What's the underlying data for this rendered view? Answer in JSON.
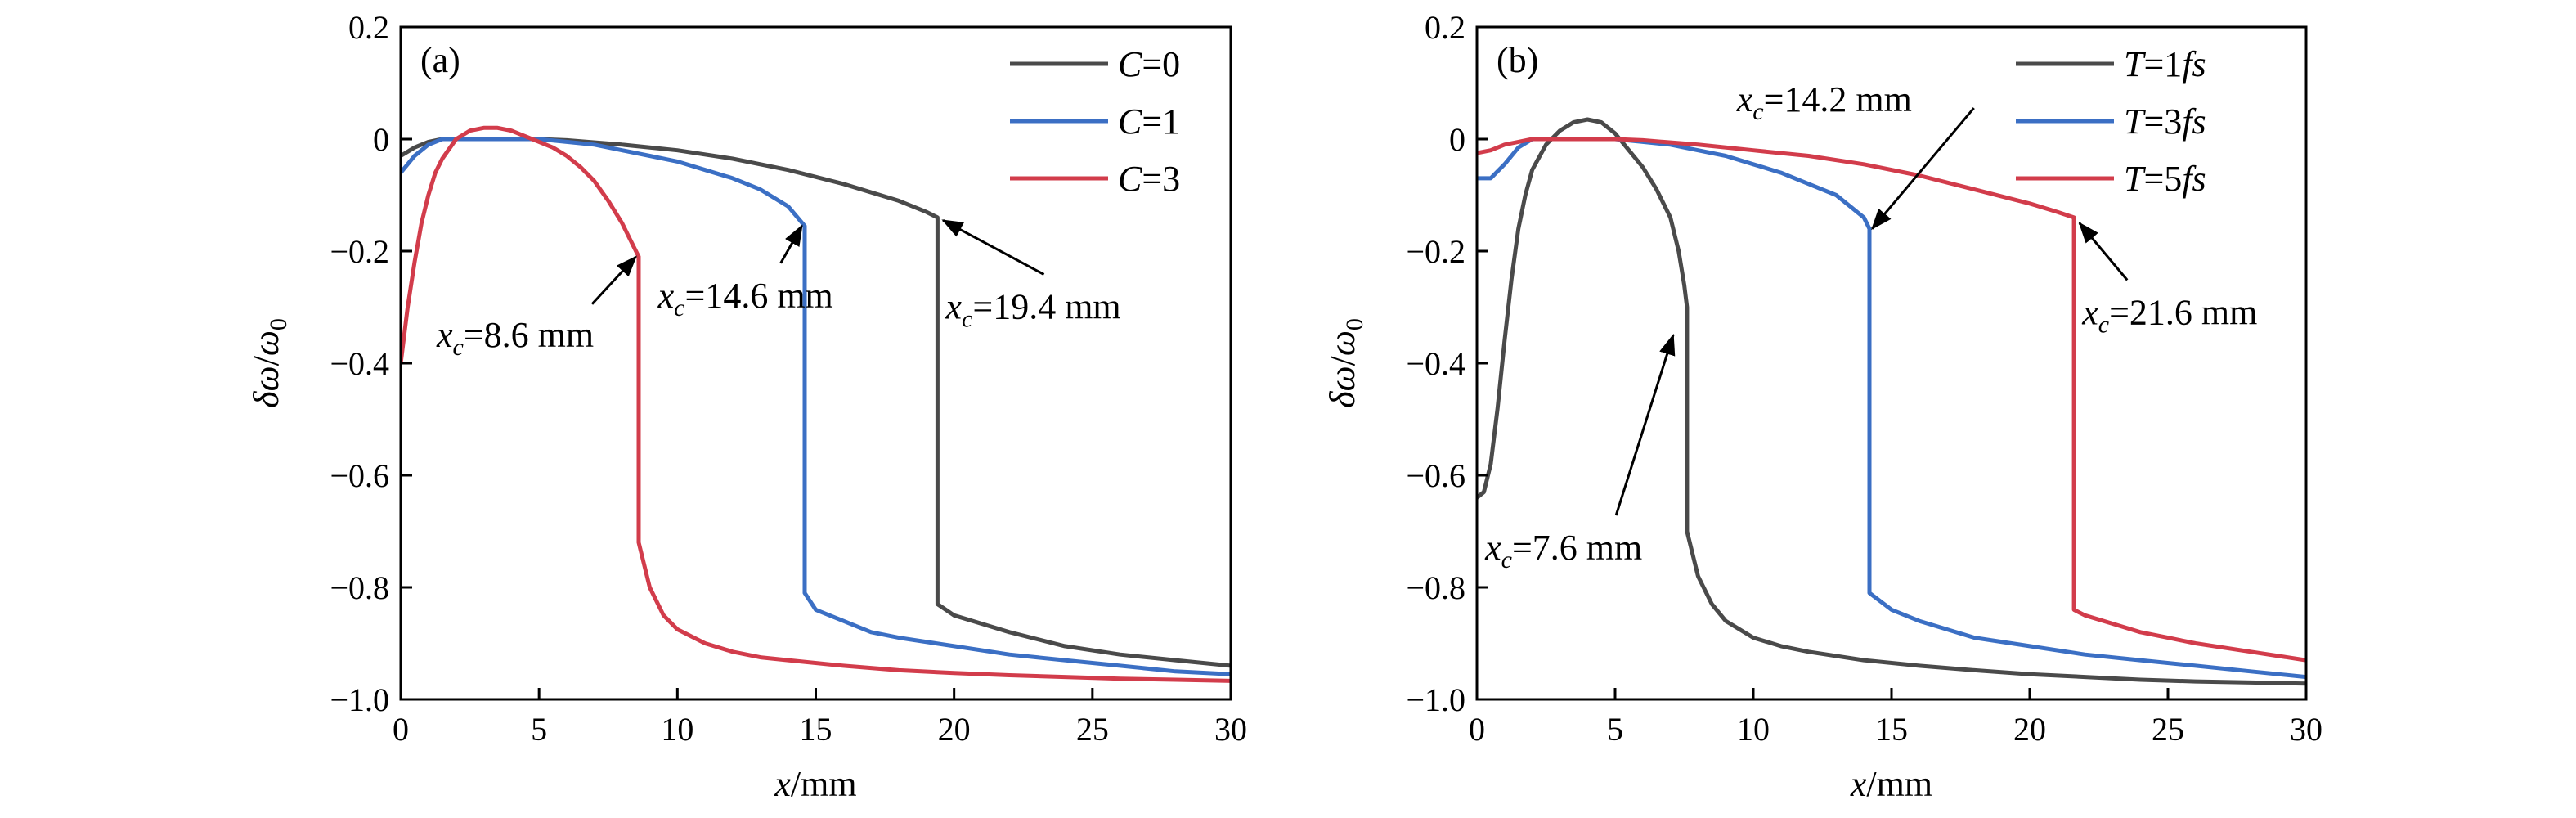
{
  "chart_data": [
    {
      "type": "line",
      "panel_label": "(a)",
      "xlabel": {
        "var": "x",
        "unit": "/mm"
      },
      "ylabel": {
        "num": "δω",
        "sep": "/",
        "den": "ω",
        "den_sub": "0"
      },
      "xlim": [
        0,
        30
      ],
      "ylim": [
        -1.0,
        0.2
      ],
      "xticks": [
        "0",
        "5",
        "10",
        "15",
        "20",
        "25",
        "30"
      ],
      "yticks": [
        "0.2",
        "0",
        "−0.2",
        "−0.4",
        "−0.6",
        "−0.8",
        "−1.0"
      ],
      "grid": false,
      "legend_position": "top-right",
      "series": [
        {
          "name": "C=0",
          "legend_var": "C",
          "legend_val": "=0",
          "color": "#4a4a4a",
          "x": [
            0,
            0.5,
            1,
            1.5,
            2,
            2.5,
            3,
            4,
            5,
            6,
            8,
            10,
            12,
            14,
            16,
            18,
            19,
            19.4,
            19.4,
            20,
            22,
            24,
            26,
            28,
            30
          ],
          "y": [
            -0.03,
            -0.015,
            -0.005,
            0,
            0,
            0,
            0,
            0,
            0,
            -0.002,
            -0.01,
            -0.02,
            -0.035,
            -0.055,
            -0.08,
            -0.11,
            -0.13,
            -0.14,
            -0.83,
            -0.85,
            -0.88,
            -0.905,
            -0.92,
            -0.93,
            -0.94
          ]
        },
        {
          "name": "C=1",
          "legend_var": "C",
          "legend_val": "=1",
          "color": "#3b6fc4",
          "x": [
            0,
            0.5,
            1,
            1.5,
            2,
            3,
            4,
            5,
            6,
            7,
            8,
            9,
            10,
            11,
            12,
            13,
            14,
            14.6,
            14.6,
            15,
            16,
            17,
            18,
            20,
            22,
            24,
            26,
            28,
            30
          ],
          "y": [
            -0.06,
            -0.03,
            -0.01,
            0,
            0,
            0,
            0,
            0,
            -0.005,
            -0.01,
            -0.02,
            -0.03,
            -0.04,
            -0.055,
            -0.07,
            -0.09,
            -0.12,
            -0.155,
            -0.81,
            -0.84,
            -0.86,
            -0.88,
            -0.89,
            -0.905,
            -0.92,
            -0.93,
            -0.94,
            -0.95,
            -0.955
          ]
        },
        {
          "name": "C=3",
          "legend_var": "C",
          "legend_val": "=3",
          "color": "#d23c4b",
          "x": [
            0,
            0.25,
            0.5,
            0.75,
            1,
            1.25,
            1.5,
            2,
            2.5,
            3,
            3.5,
            4,
            4.5,
            5,
            5.5,
            6,
            6.5,
            7,
            7.5,
            8,
            8.3,
            8.6,
            8.6,
            9,
            9.5,
            10,
            11,
            12,
            13,
            14,
            16,
            18,
            20,
            22,
            24,
            26,
            28,
            30
          ],
          "y": [
            -0.4,
            -0.3,
            -0.22,
            -0.15,
            -0.1,
            -0.06,
            -0.035,
            0,
            0.015,
            0.02,
            0.02,
            0.015,
            0.005,
            -0.005,
            -0.015,
            -0.03,
            -0.05,
            -0.075,
            -0.11,
            -0.15,
            -0.18,
            -0.21,
            -0.72,
            -0.8,
            -0.85,
            -0.875,
            -0.9,
            -0.915,
            -0.925,
            -0.93,
            -0.94,
            -0.948,
            -0.953,
            -0.957,
            -0.96,
            -0.963,
            -0.965,
            -0.967
          ]
        }
      ],
      "annotations": [
        {
          "var": "x",
          "sub": "c",
          "rest": "=8.6 mm",
          "at": [
            8.5,
            -0.21
          ],
          "text": [
            1.3,
            -0.35
          ]
        },
        {
          "var": "x",
          "sub": "c",
          "rest": "=14.6 mm",
          "at": [
            14.5,
            -0.155
          ],
          "text": [
            9.3,
            -0.28
          ]
        },
        {
          "var": "x",
          "sub": "c",
          "rest": "=19.4 mm",
          "at": [
            19.6,
            -0.145
          ],
          "text": [
            19.7,
            -0.3
          ]
        }
      ]
    },
    {
      "type": "line",
      "panel_label": "(b)",
      "xlabel": {
        "var": "x",
        "unit": "/mm"
      },
      "ylabel": {
        "num": "δω",
        "sep": "/",
        "den": "ω",
        "den_sub": "0"
      },
      "xlim": [
        0,
        30
      ],
      "ylim": [
        -1.0,
        0.2
      ],
      "xticks": [
        "0",
        "5",
        "10",
        "15",
        "20",
        "25",
        "30"
      ],
      "yticks": [
        "0.2",
        "0",
        "−0.2",
        "−0.4",
        "−0.6",
        "−0.8",
        "−1.0"
      ],
      "grid": false,
      "legend_position": "top-right",
      "series": [
        {
          "name": "T=1fs",
          "legend_var": "T",
          "legend_val": "=1",
          "legend_unit": "fs",
          "color": "#4a4a4a",
          "x": [
            0,
            0.25,
            0.5,
            0.75,
            1,
            1.25,
            1.5,
            1.75,
            2,
            2.5,
            3,
            3.5,
            4,
            4.5,
            5,
            5.5,
            6,
            6.5,
            7,
            7.3,
            7.5,
            7.6,
            7.6,
            8,
            8.5,
            9,
            10,
            11,
            12,
            14,
            16,
            18,
            20,
            22,
            24,
            26,
            28,
            30
          ],
          "y": [
            -0.64,
            -0.63,
            -0.58,
            -0.48,
            -0.36,
            -0.25,
            -0.16,
            -0.1,
            -0.055,
            -0.01,
            0.015,
            0.03,
            0.035,
            0.03,
            0.01,
            -0.02,
            -0.05,
            -0.09,
            -0.14,
            -0.2,
            -0.26,
            -0.3,
            -0.7,
            -0.78,
            -0.83,
            -0.86,
            -0.89,
            -0.905,
            -0.915,
            -0.93,
            -0.94,
            -0.948,
            -0.955,
            -0.96,
            -0.965,
            -0.968,
            -0.97,
            -0.972
          ]
        },
        {
          "name": "T=3fs",
          "legend_var": "T",
          "legend_val": "=3",
          "legend_unit": "fs",
          "color": "#3b6fc4",
          "x": [
            0,
            0.5,
            1,
            1.5,
            2,
            3,
            4,
            5,
            6,
            7,
            8,
            9,
            10,
            11,
            12,
            13,
            14,
            14.2,
            14.2,
            15,
            16,
            17,
            18,
            20,
            22,
            24,
            26,
            28,
            30
          ],
          "y": [
            -0.07,
            -0.07,
            -0.045,
            -0.015,
            0,
            0,
            0,
            0,
            -0.005,
            -0.01,
            -0.02,
            -0.03,
            -0.045,
            -0.06,
            -0.08,
            -0.1,
            -0.14,
            -0.16,
            -0.81,
            -0.84,
            -0.86,
            -0.875,
            -0.89,
            -0.905,
            -0.92,
            -0.93,
            -0.94,
            -0.95,
            -0.96
          ]
        },
        {
          "name": "T=5fs",
          "legend_var": "T",
          "legend_val": "=5",
          "legend_unit": "fs",
          "color": "#d23c4b",
          "x": [
            0,
            0.5,
            1,
            1.5,
            2,
            3,
            4,
            5,
            6,
            8,
            10,
            12,
            14,
            16,
            18,
            20,
            21,
            21.6,
            21.6,
            22,
            23,
            24,
            25,
            26,
            28,
            30
          ],
          "y": [
            -0.025,
            -0.02,
            -0.01,
            -0.005,
            0,
            0,
            0,
            0,
            -0.002,
            -0.01,
            -0.02,
            -0.03,
            -0.045,
            -0.065,
            -0.09,
            -0.115,
            -0.13,
            -0.14,
            -0.84,
            -0.85,
            -0.865,
            -0.88,
            -0.89,
            -0.9,
            -0.915,
            -0.93
          ]
        }
      ],
      "annotations": [
        {
          "var": "x",
          "sub": "c",
          "rest": "=14.2 mm",
          "at": [
            14.3,
            -0.16
          ],
          "text": [
            9.4,
            0.07
          ]
        },
        {
          "var": "x",
          "sub": "c",
          "rest": "=21.6 mm",
          "at": [
            21.8,
            -0.15
          ],
          "text": [
            21.9,
            -0.31
          ]
        },
        {
          "var": "x",
          "sub": "c",
          "rest": "=7.6 mm",
          "at": [
            7.1,
            -0.35
          ],
          "text": [
            0.3,
            -0.73
          ]
        }
      ]
    }
  ]
}
